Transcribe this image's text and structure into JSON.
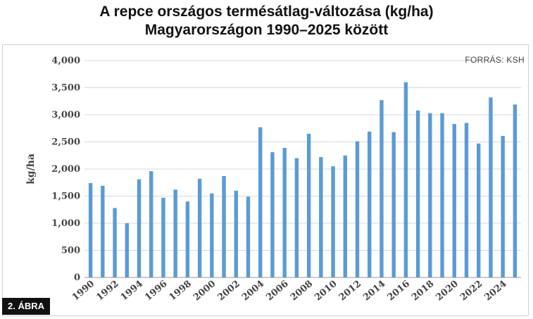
{
  "header": {
    "title_line1": "A repce országos termésátlag-változása (kg/ha)",
    "title_line2": "Magyarországon 1990–2025 között"
  },
  "source": "FORRÁS: KSH",
  "badge": "2. ÁBRA",
  "chart_data": {
    "type": "bar",
    "title": "A repce országos termésátlag-változása (kg/ha) Magyarországon 1990–2025 között",
    "ylabel": "kg/ha",
    "xlabel": "",
    "ylim": [
      0,
      4000
    ],
    "yticks": [
      0,
      500,
      1000,
      1500,
      2000,
      2500,
      3000,
      3500,
      4000
    ],
    "ytick_labels": [
      "0",
      "500",
      "1,000",
      "1,500",
      "2,000",
      "2,500",
      "3,000",
      "3,500",
      "4,000"
    ],
    "grid": true,
    "bar_color": "#5b9bd5",
    "categories": [
      "1990",
      "1991",
      "1992",
      "1993",
      "1994",
      "1995",
      "1996",
      "1997",
      "1998",
      "1999",
      "2000",
      "2001",
      "2002",
      "2003",
      "2004",
      "2005",
      "2006",
      "2007",
      "2008",
      "2009",
      "2010",
      "2011",
      "2012",
      "2013",
      "2014",
      "2015",
      "2016",
      "2017",
      "2018",
      "2019",
      "2020",
      "2021",
      "2022",
      "2023",
      "2024",
      "2025"
    ],
    "xtick_labels": [
      "1990",
      "1992",
      "1994",
      "1996",
      "1998",
      "2000",
      "2002",
      "2004",
      "2006",
      "2008",
      "2010",
      "2012",
      "2014",
      "2016",
      "2018",
      "2020",
      "2022",
      "2024"
    ],
    "values": [
      1740,
      1690,
      1280,
      1000,
      1810,
      1960,
      1470,
      1620,
      1400,
      1820,
      1550,
      1870,
      1600,
      1490,
      2770,
      2310,
      2390,
      2200,
      2650,
      2220,
      2050,
      2250,
      2510,
      2690,
      3270,
      2680,
      3600,
      3080,
      3030,
      3030,
      2830,
      2850,
      2470,
      3320,
      2610,
      3190
    ]
  }
}
